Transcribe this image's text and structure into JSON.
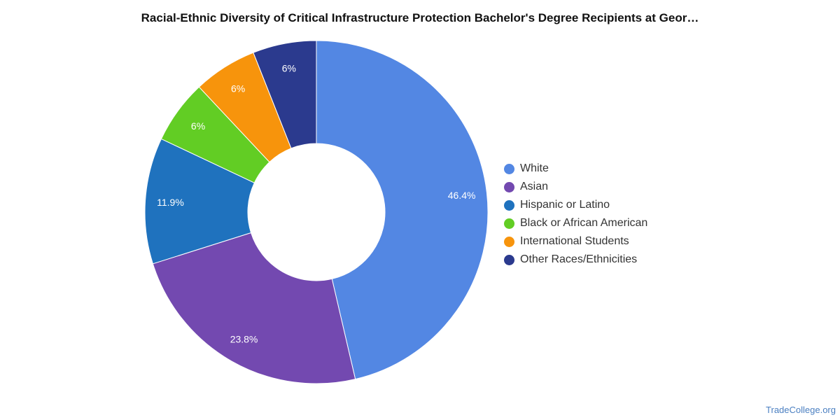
{
  "chart_data": {
    "type": "pie",
    "title": "Racial-Ethnic Diversity of Critical Infrastructure Protection Bachelor's Degree Recipients at Geor…",
    "slices": [
      {
        "label": "White",
        "value": 46.4,
        "display": "46.4%",
        "color": "#5387e3"
      },
      {
        "label": "Asian",
        "value": 23.8,
        "display": "23.8%",
        "color": "#7349b0"
      },
      {
        "label": "Hispanic or Latino",
        "value": 11.9,
        "display": "11.9%",
        "color": "#1f72be"
      },
      {
        "label": "Black or African American",
        "value": 6,
        "display": "6%",
        "color": "#62cd24"
      },
      {
        "label": "International Students",
        "value": 6,
        "display": "6%",
        "color": "#f7940c"
      },
      {
        "label": "Other Races/Ethnicities",
        "value": 6,
        "display": "6%",
        "color": "#2b3a8e"
      }
    ],
    "legend_position": "right",
    "donut": true
  },
  "source": "TradeCollege.org"
}
